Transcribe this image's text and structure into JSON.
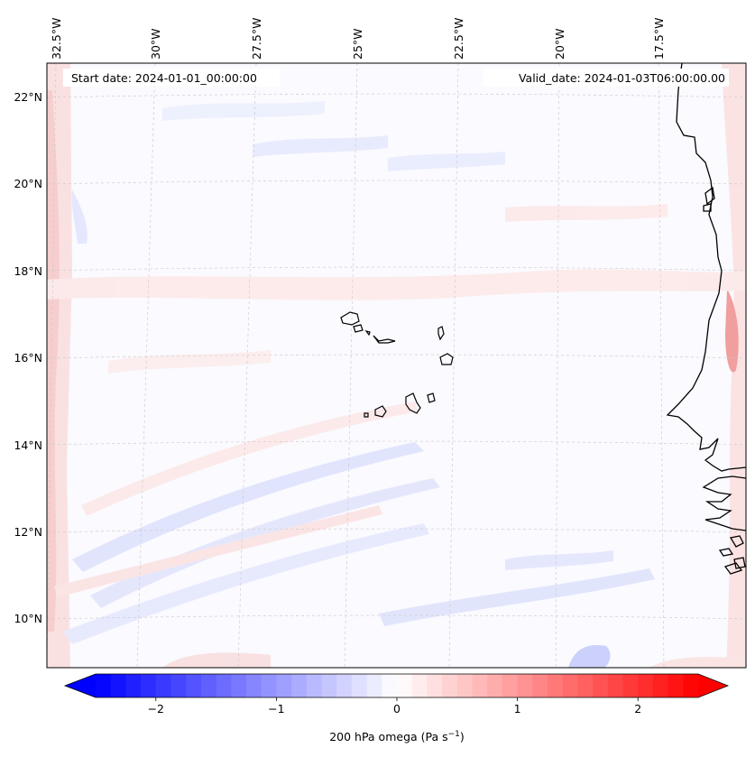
{
  "header": {
    "start_date": "Start date: 2024-01-01_00:00:00",
    "valid_date": "Valid_date: 2024-01-03T06:00:00.00"
  },
  "axes": {
    "longitude_labels": [
      "32.5°W",
      "30°W",
      "27.5°W",
      "25°W",
      "22.5°W",
      "20°W",
      "17.5°W"
    ],
    "latitude_labels": [
      "22°N",
      "20°N",
      "18°N",
      "16°N",
      "14°N",
      "12°N",
      "10°N"
    ]
  },
  "colorbar": {
    "ticks": [
      "−2",
      "−1",
      "0",
      "1",
      "2"
    ],
    "min": -2.5,
    "max": 2.5,
    "label_main": "200 hPa omega (Pa s",
    "label_sup": "−1",
    "label_close": ")",
    "color_negative": "#0000ff",
    "color_zero": "#ffffff",
    "color_positive": "#ff0000"
  },
  "field_colors": {
    "light_blue": "#e8ebff",
    "blue": "#c9cffb",
    "light_red": "#fdeaea",
    "red": "#f7c4c4",
    "strong_red": "#f19a9a"
  }
}
